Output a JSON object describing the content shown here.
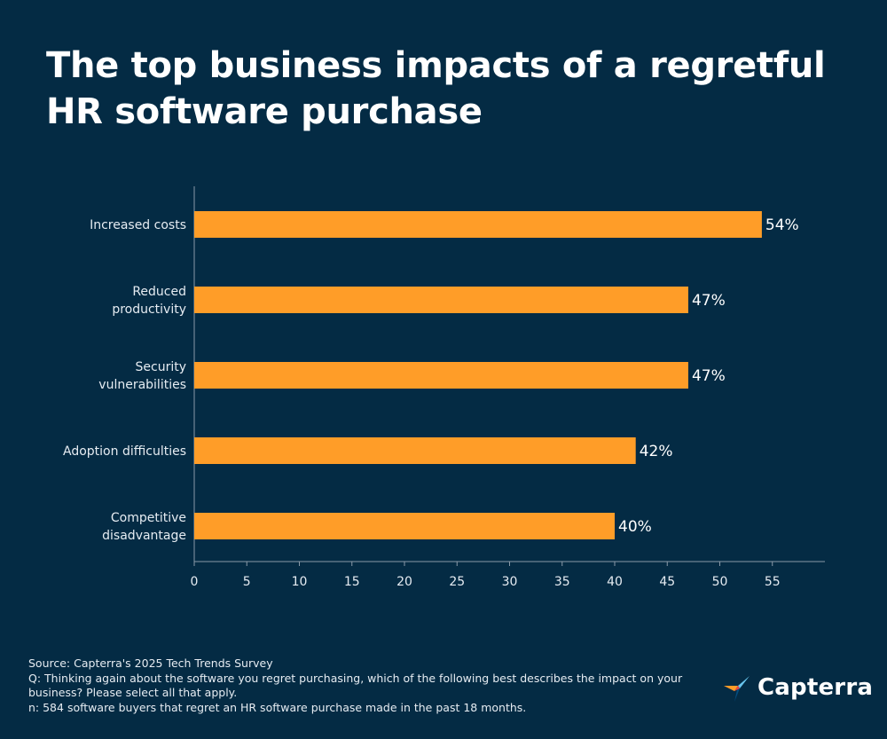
{
  "title": "The top business impacts of a regretful HR software purchase",
  "chart_data": {
    "type": "bar",
    "orientation": "horizontal",
    "title": "The top business impacts of a regretful HR software purchase",
    "categories": [
      [
        "Increased costs"
      ],
      [
        "Reduced",
        "productivity"
      ],
      [
        "Security",
        "vulnerabilities"
      ],
      [
        "Adoption difficulties"
      ],
      [
        "Competitive",
        "disadvantage"
      ]
    ],
    "values": [
      54,
      47,
      47,
      42,
      40
    ],
    "value_labels": [
      "54%",
      "47%",
      "47%",
      "42%",
      "40%"
    ],
    "xticks": [
      0,
      5,
      10,
      15,
      20,
      25,
      30,
      35,
      40,
      45,
      50,
      55
    ],
    "xlim": [
      0,
      60
    ],
    "xlabel": "",
    "ylabel": "",
    "grid": false,
    "bar_color": "#ff9d28",
    "axis_color": "#8a9aa8"
  },
  "footnotes": {
    "source": "Source: Capterra's 2025 Tech Trends Survey",
    "question": "Q: Thinking again about the software you regret purchasing, which of the following best describes the impact on your business? Please select all that apply.",
    "sample": "n: 584 software buyers that regret an HR software purchase made in the past 18 months."
  },
  "logo": {
    "text": "Capterra",
    "icon": "capterra-logo-icon",
    "colors": [
      "#ff9d28",
      "#68c5ed",
      "#044d80",
      "#e54747"
    ]
  }
}
